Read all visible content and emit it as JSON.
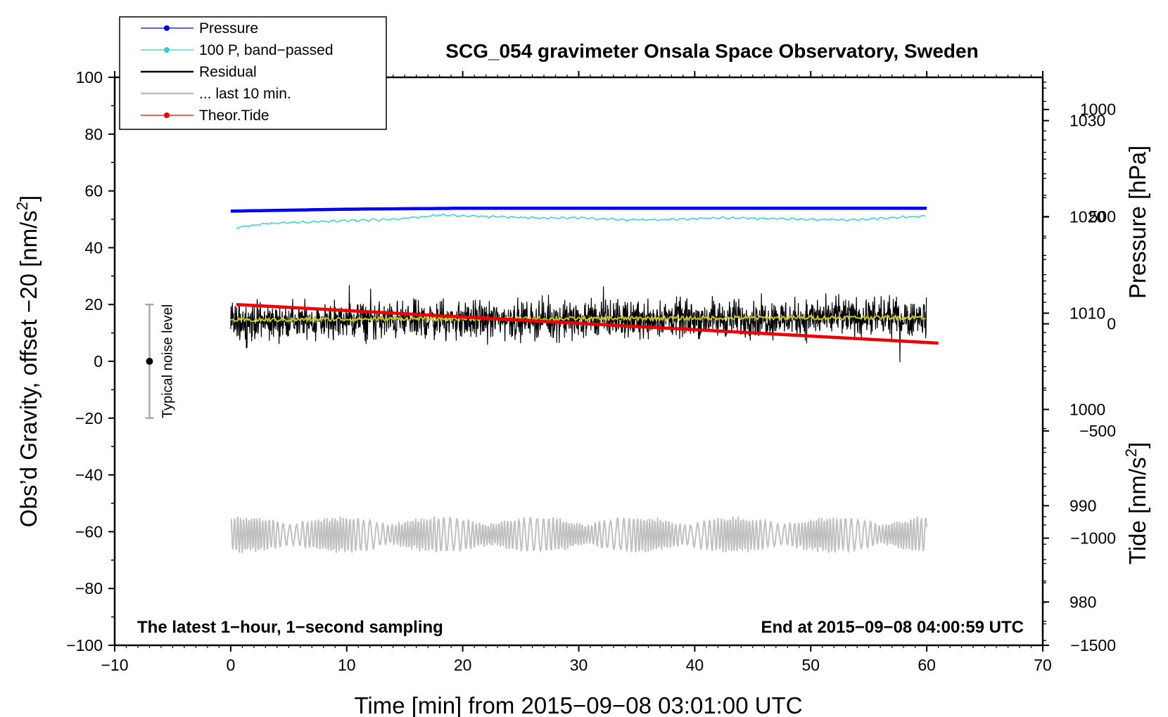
{
  "chart_data": {
    "type": "line",
    "title": "SCG_054 gravimeter Onsala Space Observatory, Sweden",
    "xlabel": "Time [min] from 2015−09−08 03:01:00 UTC",
    "ylabel": {
      "pre": "Obs’d Gravity, offset −20 [nm/s",
      "sup": "2",
      "post": "]"
    },
    "y2label_pressure": "Pressure [hPa]",
    "y2label_tide": {
      "pre": "Tide [nm/s",
      "sup": "2",
      "post": "]"
    },
    "xlim": [
      -10,
      70
    ],
    "ylim": [
      -100,
      100
    ],
    "pressure_lim": [
      975.5,
      1034.5
    ],
    "tide_lim": [
      -1500,
      1150
    ],
    "x_ticks": [
      -10,
      0,
      10,
      20,
      30,
      40,
      50,
      60,
      70
    ],
    "x_tick_labels": [
      "−10",
      "0",
      "10",
      "20",
      "30",
      "40",
      "50",
      "60",
      "70"
    ],
    "y_ticks": [
      -100,
      -80,
      -60,
      -40,
      -20,
      0,
      20,
      40,
      60,
      80,
      100
    ],
    "y_tick_labels": [
      "−100",
      "−80",
      "−60",
      "−40",
      "−20",
      "0",
      "20",
      "40",
      "60",
      "80",
      "100"
    ],
    "pressure_ticks": [
      980,
      990,
      1000,
      1010,
      1020,
      1030
    ],
    "pressure_tick_labels": [
      "980",
      "990",
      "1000",
      "1010",
      "1020",
      "1030"
    ],
    "tide_ticks": [
      -1500,
      -1000,
      -500,
      0,
      500,
      1000
    ],
    "tide_tick_labels": [
      "−1500",
      "−1000",
      "−500",
      "0",
      "500",
      "1000"
    ],
    "annotations": {
      "bottom_left": "The latest 1−hour, 1−second sampling",
      "bottom_right": "End at 2015−09−08 04:00:59 UTC",
      "noise_label": "Typical noise level"
    },
    "noise_bar": {
      "x": -7,
      "center": 0,
      "low": -20,
      "high": 20
    },
    "legend": {
      "position": "top-left",
      "entries": [
        {
          "label": "Pressure",
          "color": "#0000ee",
          "marker": true
        },
        {
          "label": "100 P, band−passed",
          "color": "#30d0d0",
          "marker": true
        },
        {
          "label": "Residual",
          "color": "#000000",
          "marker": false
        },
        {
          "label": "... last 10 min.",
          "color": "#c0c0c0",
          "marker": false
        },
        {
          "label": "Theor.Tide",
          "color": "#ee0000",
          "marker": true
        }
      ]
    },
    "series": [
      {
        "name": "Pressure",
        "axis": "pressure_hPa",
        "color": "#0000ee",
        "x": [
          0,
          10,
          20,
          30,
          40,
          50,
          60
        ],
        "values": [
          1020.6,
          1020.8,
          1020.9,
          1020.9,
          1020.9,
          1020.9,
          1020.9
        ]
      },
      {
        "name": "100 P, band-passed",
        "axis": "gravity",
        "color": "#30d0d0",
        "x": [
          0.5,
          3,
          6,
          10,
          14,
          18,
          22,
          26,
          30,
          34,
          38,
          42,
          46,
          50,
          54,
          58,
          60
        ],
        "values": [
          47,
          48.5,
          49,
          49.5,
          50,
          51.5,
          51,
          50.5,
          50.5,
          49.8,
          50,
          50.5,
          50.3,
          50,
          49.8,
          50.8,
          51
        ]
      },
      {
        "name": "Residual",
        "axis": "gravity",
        "color": "#000000",
        "x": [
          0,
          60
        ],
        "center": [
          14,
          15.5
        ],
        "amplitude": 5
      },
      {
        "name": "Residual (smoothed)",
        "axis": "gravity",
        "color": "#c8c820",
        "x": [
          0,
          15,
          30,
          45,
          60
        ],
        "values": [
          14.5,
          15,
          15,
          15.3,
          15.5
        ]
      },
      {
        "name": "... last 10 min.",
        "axis": "gravity",
        "color": "#c0c0c0",
        "x": [
          0,
          60
        ],
        "center": -61,
        "amplitude": 6
      },
      {
        "name": "Theor.Tide",
        "axis": "tide_nm_s2",
        "color": "#ee0000",
        "x": [
          0.5,
          61
        ],
        "values": [
          90,
          -90
        ]
      }
    ]
  }
}
